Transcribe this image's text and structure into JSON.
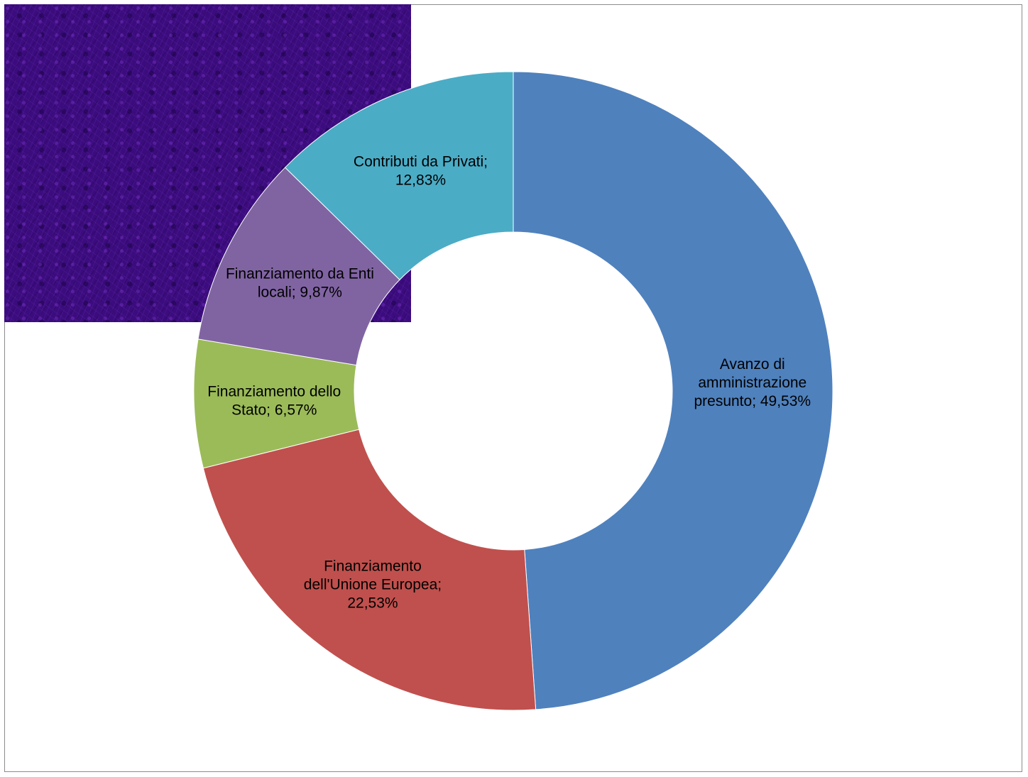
{
  "chart_data": {
    "type": "pie",
    "variant": "doughnut",
    "title": "",
    "slices": [
      {
        "name": "Avanzo di amministrazione presunto",
        "value": 49.53,
        "color": "#4f81bd",
        "label_lines": [
          "Avanzo di",
          "amministrazione",
          "presunto; 49,53%"
        ]
      },
      {
        "name": "Finanziamento dell'Unione Europea",
        "value": 22.53,
        "color": "#c0504d",
        "label_lines": [
          "Finanziamento",
          "dell'Unione Europea;",
          "22,53%"
        ]
      },
      {
        "name": "Finanziamento dello Stato",
        "value": 6.57,
        "color": "#9bbb59",
        "label_lines": [
          "Finanziamento dello",
          "Stato; 6,57%"
        ]
      },
      {
        "name": "Finanziamento da Enti locali",
        "value": 9.87,
        "color": "#8064a2",
        "label_lines": [
          "Finanziamento da Enti",
          "locali; 9,87%"
        ]
      },
      {
        "name": "Contributi da Privati",
        "value": 12.83,
        "color": "#4bacc6",
        "label_lines": [
          "Contributi da Privati;",
          "12,83%"
        ]
      }
    ],
    "legend": "none"
  }
}
